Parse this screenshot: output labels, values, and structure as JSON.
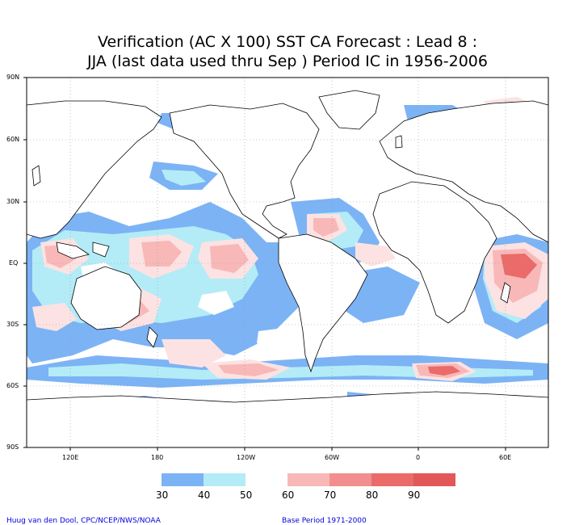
{
  "title": {
    "line1": "Verification (AC X 100) SST CA Forecast : Lead 8 :",
    "line2": "JJA (last data used thru Sep ) Period IC in 1956-2006"
  },
  "map": {
    "lat_labels": [
      "90N",
      "60N",
      "30N",
      "EQ",
      "30S",
      "60S",
      "90S"
    ],
    "lon_labels": [
      "120E",
      "180",
      "120W",
      "60W",
      "0",
      "60E"
    ]
  },
  "legend": {
    "labels": [
      "30",
      "40",
      "50",
      "60",
      "70",
      "80",
      "90"
    ],
    "colors": [
      "#7cb3f5",
      "#b3ecf7",
      "#ffffff",
      "#fce2e2",
      "#f8b8b8",
      "#f28e8e",
      "#eb6a6a",
      "#e25858"
    ]
  },
  "credit_left": "Huug van den Dool, CPC/NCEP/NWS/NOAA",
  "credit_right": "Base Period 1971-2000"
}
